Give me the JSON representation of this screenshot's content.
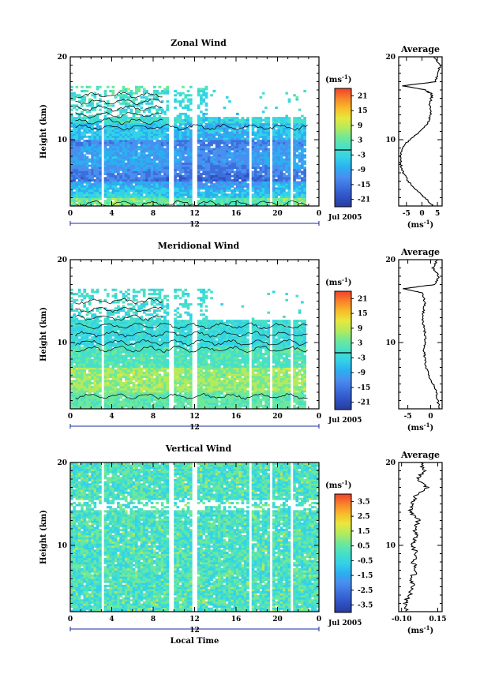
{
  "colors": {
    "colormap": [
      "#283c9c",
      "#2f52c4",
      "#3c6fdc",
      "#4a8ef0",
      "#2ab0f0",
      "#34d2e8",
      "#46e0c8",
      "#6ee89a",
      "#b4ea5c",
      "#e8e83c",
      "#f8bc28",
      "#f8822a",
      "#f0402a"
    ],
    "contour": "#000000",
    "axis": "#000000"
  },
  "chart_data": [
    {
      "type": "heatmap",
      "title": "Zonal Wind",
      "ylabel": "Height (km)",
      "xticks": [
        "0",
        "4",
        "8",
        "12",
        "16",
        "20",
        "0"
      ],
      "x_range_hours": [
        0,
        24
      ],
      "yticks": [
        "10",
        "20"
      ],
      "y_range_km": [
        2,
        20
      ],
      "date_day_label": "12",
      "date_month_label": "Jul 2005",
      "colorbar_unit": "(ms",
      "colorbar_unit_exp": "-1",
      "colorbar_unit_close": ")",
      "colorbar_ticks": [
        "21",
        "15",
        "9",
        "3",
        "-3",
        "-9",
        "-15",
        "-21"
      ],
      "colorbar_range": [
        -24,
        24
      ],
      "colorbar_zero_line": 0,
      "contour_level": 0,
      "data_gaps_hours": [
        [
          3.0,
          3.3
        ],
        [
          9.6,
          10.0
        ],
        [
          11.8,
          12.2
        ],
        [
          17.2,
          17.5
        ],
        [
          19.3,
          19.6
        ],
        [
          21.2,
          21.4
        ]
      ],
      "profile": {
        "title": "Average",
        "xticks": [
          "-5",
          "0",
          "5"
        ],
        "xlabel": "(ms",
        "xlabel_exp": "-1",
        "xlabel_close": ")",
        "x_range": [
          -7.5,
          6.5
        ],
        "y_ticks": [
          "10",
          "20"
        ],
        "heights": [
          2,
          3,
          4,
          5,
          6,
          7,
          8,
          9,
          10,
          11,
          12,
          13,
          14,
          15,
          15.5,
          16,
          16.5,
          17,
          18,
          19,
          20
        ],
        "values": [
          3.5,
          1.0,
          -2.0,
          -4.5,
          -6.0,
          -6.8,
          -7.0,
          -6.5,
          -4.0,
          -0.5,
          2.0,
          2.8,
          2.5,
          3.0,
          3.2,
          1.0,
          -6.0,
          4.5,
          5.0,
          6.0,
          4.0
        ]
      }
    },
    {
      "type": "heatmap",
      "title": "Meridional Wind",
      "ylabel": "Height (km)",
      "xticks": [
        "0",
        "4",
        "8",
        "12",
        "16",
        "20",
        "0"
      ],
      "x_range_hours": [
        0,
        24
      ],
      "yticks": [
        "10",
        "20"
      ],
      "y_range_km": [
        2,
        20
      ],
      "date_day_label": "12",
      "date_month_label": "Jul 2005",
      "colorbar_unit": "(ms",
      "colorbar_unit_exp": "-1",
      "colorbar_unit_close": ")",
      "colorbar_ticks": [
        "21",
        "15",
        "9",
        "3",
        "-3",
        "-9",
        "-15",
        "-21"
      ],
      "colorbar_range": [
        -24,
        24
      ],
      "colorbar_zero_line": 0,
      "contour_level": 0,
      "data_gaps_hours": [
        [
          3.0,
          3.3
        ],
        [
          9.6,
          10.0
        ],
        [
          11.8,
          12.2
        ],
        [
          17.2,
          17.5
        ],
        [
          19.3,
          19.6
        ],
        [
          21.2,
          21.4
        ]
      ],
      "profile": {
        "title": "Average",
        "xticks": [
          "-5",
          "0"
        ],
        "xlabel": "(ms",
        "xlabel_exp": "-1",
        "xlabel_close": ")",
        "x_range": [
          -7,
          2.5
        ],
        "y_ticks": [
          "10",
          "20"
        ],
        "heights": [
          2,
          3,
          4,
          5,
          6,
          7,
          8,
          9,
          10,
          11,
          12,
          13,
          14,
          15,
          16,
          16.5,
          17,
          18,
          19,
          20
        ],
        "values": [
          2.0,
          1.5,
          1.2,
          0.5,
          -0.5,
          -1.0,
          -1.2,
          -1.5,
          -1.3,
          -1.2,
          -1.5,
          -1.8,
          -1.5,
          -1.3,
          -1.8,
          -6.0,
          1.0,
          1.8,
          0.5,
          1.5
        ]
      }
    },
    {
      "type": "heatmap",
      "title": "Vertical Wind",
      "ylabel": "Height (km)",
      "xlabel": "Local Time",
      "xticks": [
        "0",
        "4",
        "8",
        "12",
        "16",
        "20",
        "0"
      ],
      "x_range_hours": [
        0,
        24
      ],
      "yticks": [
        "10",
        "20"
      ],
      "y_range_km": [
        2,
        20
      ],
      "date_day_label": "12",
      "date_month_label": "Jul 2005",
      "colorbar_unit": "(ms",
      "colorbar_unit_exp": "-1",
      "colorbar_unit_close": ")",
      "colorbar_ticks": [
        "3.5",
        "2.5",
        "1.5",
        "0.5",
        "-0.5",
        "-1.5",
        "-2.5",
        "-3.5"
      ],
      "colorbar_range": [
        -4,
        4
      ],
      "data_gaps_hours": [
        [
          3.0,
          3.3
        ],
        [
          9.6,
          10.0
        ],
        [
          11.8,
          12.2
        ],
        [
          17.2,
          17.5
        ],
        [
          19.3,
          19.6
        ],
        [
          21.2,
          21.4
        ]
      ],
      "profile": {
        "title": "Average",
        "xticks": [
          "-0.10",
          "0.15"
        ],
        "xlabel": "(ms",
        "xlabel_exp": "-1",
        "xlabel_close": ")",
        "x_range": [
          -0.12,
          0.18
        ],
        "y_ticks": [
          "10",
          "20"
        ],
        "heights": [
          2,
          3,
          4,
          5,
          6,
          7,
          8,
          9,
          10,
          11,
          12,
          13,
          14,
          15,
          16,
          17,
          18,
          19,
          20
        ],
        "values": [
          -0.06,
          -0.08,
          -0.04,
          -0.02,
          -0.03,
          0.0,
          -0.02,
          0.0,
          -0.02,
          0.0,
          -0.01,
          0.02,
          -0.04,
          -0.03,
          0.0,
          0.08,
          0.02,
          0.05,
          0.03
        ]
      }
    }
  ]
}
